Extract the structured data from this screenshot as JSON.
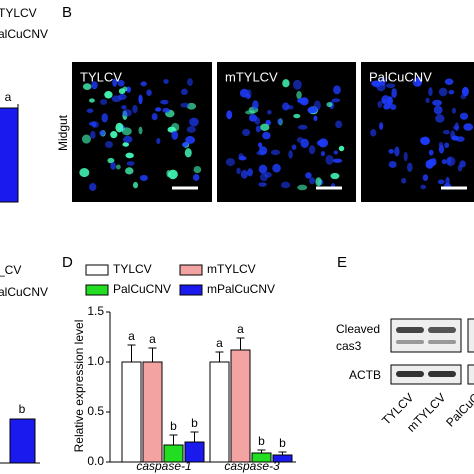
{
  "panel_a_partial": {
    "legend": [
      "TYLCV",
      "alCuCNV"
    ],
    "bar_label": "a"
  },
  "panel_b": {
    "label": "B",
    "tissue": "Midgut",
    "images": [
      "TYLCV",
      "mTYLCV",
      "PalCuCNV"
    ]
  },
  "panel_c_partial": {
    "legend": [
      "_CV",
      "alCuCNV"
    ],
    "bar_label": "b"
  },
  "chart_data": {
    "type": "bar",
    "label": "D",
    "y_label": "Relative expression level",
    "categories": [
      "caspase-1",
      "caspase-3"
    ],
    "series": [
      {
        "name": "TYLCV",
        "color": "#ffffff",
        "values": [
          1.0,
          1.0
        ],
        "errors": [
          0.17,
          0.1
        ],
        "letters": [
          "a",
          "a"
        ]
      },
      {
        "name": "mTYLCV",
        "color": "#f4a3a3",
        "values": [
          1.0,
          1.12
        ],
        "errors": [
          0.14,
          0.12
        ],
        "letters": [
          "a",
          "a"
        ]
      },
      {
        "name": "PalCuCNV",
        "color": "#22dd22",
        "values": [
          0.17,
          0.09
        ],
        "errors": [
          0.1,
          0.03
        ],
        "letters": [
          "b",
          "b"
        ]
      },
      {
        "name": "mPalCuCNV",
        "color": "#1a1aee",
        "values": [
          0.2,
          0.07
        ],
        "errors": [
          0.1,
          0.03
        ],
        "letters": [
          "b",
          "b"
        ]
      }
    ],
    "ylim": [
      0,
      1.5
    ],
    "yticks": [
      {
        "value": 0,
        "label": "0.0"
      },
      {
        "value": 0.5,
        "label": "0.5"
      },
      {
        "value": 1,
        "label": "1.0"
      },
      {
        "value": 1.5,
        "label": "1.5"
      }
    ]
  },
  "panel_e": {
    "label": "E",
    "rows": [
      "Cleaved",
      "cas3",
      "ACTB"
    ],
    "lanes": [
      "TYLCV",
      "mTYLCV",
      "PalCuC"
    ]
  }
}
